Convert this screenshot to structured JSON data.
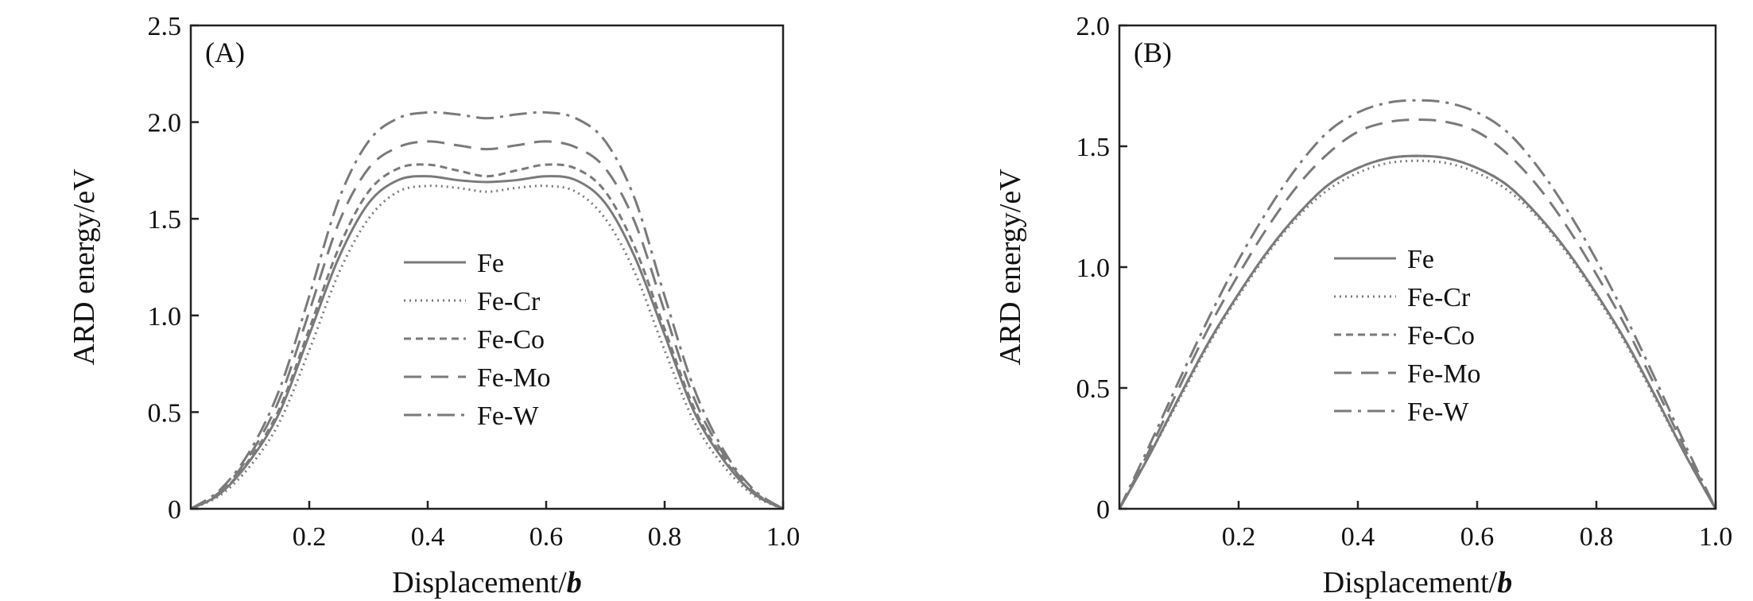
{
  "chart_data": [
    {
      "type": "line",
      "panel_label": "(A)",
      "xlabel": "Displacement/",
      "xlabel_italic": "b",
      "ylabel": "ARD energy/eV",
      "xlim": [
        0,
        1.0
      ],
      "ylim": [
        0,
        2.5
      ],
      "xticks": [
        0.2,
        0.4,
        0.6,
        0.8,
        1.0
      ],
      "xtick_labels": [
        "0.2",
        "0.4",
        "0.6",
        "0.8",
        "1.0"
      ],
      "yticks": [
        0,
        0.5,
        1.0,
        1.5,
        2.0,
        2.5
      ],
      "ytick_labels": [
        "0",
        "0.5",
        "1.0",
        "1.5",
        "2.0",
        "2.5"
      ],
      "grid": false,
      "legend_position": "center",
      "x": [
        0,
        0.05,
        0.1,
        0.15,
        0.2,
        0.25,
        0.3,
        0.35,
        0.4,
        0.45,
        0.5,
        0.55,
        0.6,
        0.65,
        0.7,
        0.75,
        0.8,
        0.85,
        0.9,
        0.95,
        1.0
      ],
      "series": [
        {
          "name": "Fe",
          "style": "solid",
          "values": [
            0,
            0.08,
            0.25,
            0.5,
            0.9,
            1.3,
            1.58,
            1.7,
            1.72,
            1.7,
            1.69,
            1.7,
            1.72,
            1.7,
            1.58,
            1.3,
            0.9,
            0.5,
            0.25,
            0.08,
            0
          ]
        },
        {
          "name": "Fe-Cr",
          "style": "dotted",
          "values": [
            0,
            0.07,
            0.22,
            0.45,
            0.82,
            1.22,
            1.5,
            1.64,
            1.67,
            1.66,
            1.64,
            1.66,
            1.67,
            1.64,
            1.5,
            1.22,
            0.82,
            0.45,
            0.22,
            0.07,
            0
          ]
        },
        {
          "name": "Fe-Co",
          "style": "short-dash",
          "values": [
            0,
            0.08,
            0.26,
            0.52,
            0.93,
            1.35,
            1.64,
            1.76,
            1.78,
            1.75,
            1.72,
            1.75,
            1.78,
            1.76,
            1.64,
            1.35,
            0.93,
            0.52,
            0.26,
            0.08,
            0
          ]
        },
        {
          "name": "Fe-Mo",
          "style": "long-dash",
          "values": [
            0,
            0.09,
            0.28,
            0.57,
            1.02,
            1.48,
            1.76,
            1.87,
            1.9,
            1.88,
            1.86,
            1.88,
            1.9,
            1.87,
            1.76,
            1.48,
            1.02,
            0.57,
            0.28,
            0.09,
            0
          ]
        },
        {
          "name": "Fe-W",
          "style": "dash-dot",
          "values": [
            0,
            0.1,
            0.3,
            0.62,
            1.1,
            1.6,
            1.9,
            2.02,
            2.05,
            2.04,
            2.02,
            2.04,
            2.05,
            2.02,
            1.9,
            1.6,
            1.1,
            0.62,
            0.3,
            0.1,
            0
          ]
        }
      ]
    },
    {
      "type": "line",
      "panel_label": "(B)",
      "xlabel": "Displacement/",
      "xlabel_italic": "b",
      "ylabel": "ARD energy/eV",
      "xlim": [
        0,
        1.0
      ],
      "ylim": [
        0,
        2.0
      ],
      "xticks": [
        0.2,
        0.4,
        0.6,
        0.8,
        1.0
      ],
      "xtick_labels": [
        "0.2",
        "0.4",
        "0.6",
        "0.8",
        "1.0"
      ],
      "yticks": [
        0,
        0.5,
        1.0,
        1.5,
        2.0
      ],
      "ytick_labels": [
        "0",
        "0.5",
        "1.0",
        "1.5",
        "2.0"
      ],
      "grid": false,
      "legend_position": "center",
      "x": [
        0,
        0.05,
        0.1,
        0.15,
        0.2,
        0.25,
        0.3,
        0.35,
        0.4,
        0.45,
        0.5,
        0.55,
        0.6,
        0.65,
        0.7,
        0.75,
        0.8,
        0.85,
        0.9,
        0.95,
        1.0
      ],
      "series": [
        {
          "name": "Fe",
          "style": "solid",
          "values": [
            0,
            0.22,
            0.46,
            0.69,
            0.89,
            1.07,
            1.22,
            1.34,
            1.41,
            1.45,
            1.46,
            1.45,
            1.41,
            1.34,
            1.22,
            1.07,
            0.89,
            0.69,
            0.46,
            0.22,
            0
          ]
        },
        {
          "name": "Fe-Cr",
          "style": "dotted",
          "values": [
            0,
            0.22,
            0.45,
            0.68,
            0.88,
            1.06,
            1.21,
            1.32,
            1.39,
            1.43,
            1.44,
            1.43,
            1.39,
            1.32,
            1.21,
            1.06,
            0.88,
            0.68,
            0.45,
            0.22,
            0
          ]
        },
        {
          "name": "Fe-Co",
          "style": "short-dash",
          "values": [
            0,
            0.22,
            0.46,
            0.69,
            0.89,
            1.07,
            1.22,
            1.34,
            1.41,
            1.45,
            1.46,
            1.45,
            1.41,
            1.34,
            1.22,
            1.07,
            0.89,
            0.69,
            0.46,
            0.22,
            0
          ]
        },
        {
          "name": "Fe-Mo",
          "style": "long-dash",
          "values": [
            0,
            0.24,
            0.5,
            0.75,
            0.97,
            1.17,
            1.34,
            1.47,
            1.56,
            1.6,
            1.61,
            1.6,
            1.56,
            1.47,
            1.34,
            1.17,
            0.97,
            0.75,
            0.5,
            0.24,
            0
          ]
        },
        {
          "name": "Fe-W",
          "style": "dash-dot",
          "values": [
            0,
            0.26,
            0.53,
            0.79,
            1.03,
            1.24,
            1.42,
            1.56,
            1.64,
            1.68,
            1.69,
            1.68,
            1.64,
            1.56,
            1.42,
            1.24,
            1.03,
            0.79,
            0.53,
            0.26,
            0
          ]
        }
      ]
    }
  ],
  "line_color": "#7a7a7a"
}
